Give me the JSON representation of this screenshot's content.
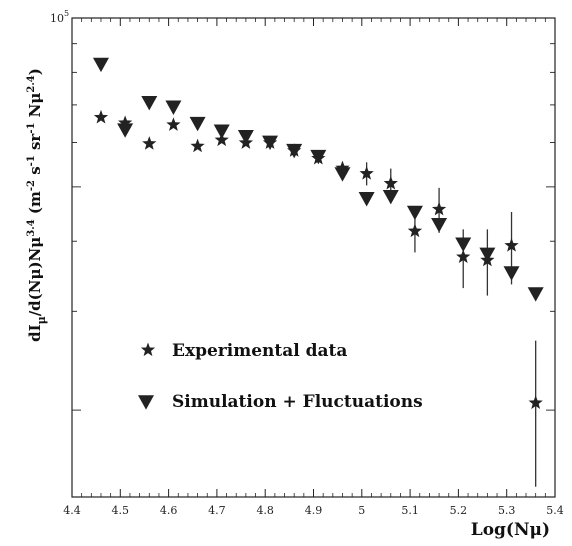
{
  "chart_data": {
    "type": "scatter",
    "xlabel": "Log(Nμ)",
    "ylabel": "dIμ/d(Nμ)Nμ^3.4 (m^-2 s^-1 sr^-1 Nμ^2.4)",
    "ylabel_parts": {
      "a": "dI",
      "a_sub": "μ",
      "b": "/d(Nμ)Nμ",
      "b_sup": "3.4",
      "c": " (m",
      "c_sup": "-2",
      "d": " s",
      "d_sup": "-1",
      "e": " sr",
      "e_sup": "-1",
      "f": " Nμ",
      "f_sup": "2.4",
      "g": ")"
    },
    "xlim": [
      4.4,
      5.4
    ],
    "x_ticks": [
      {
        "v": 4.4,
        "label": "4.4"
      },
      {
        "v": 4.5,
        "label": "4.5"
      },
      {
        "v": 4.6,
        "label": "4.6"
      },
      {
        "v": 4.7,
        "label": "4.7"
      },
      {
        "v": 4.8,
        "label": "4.8"
      },
      {
        "v": 4.9,
        "label": "4.9"
      },
      {
        "v": 5.0,
        "label": "5"
      },
      {
        "v": 5.1,
        "label": "5.1"
      },
      {
        "v": 5.2,
        "label": "5.2"
      },
      {
        "v": 5.3,
        "label": "5.3"
      },
      {
        "v": 5.4,
        "label": "5.4"
      }
    ],
    "y_scale": "log",
    "ylim": [
      14000,
      100000
    ],
    "y_top_label": {
      "base": "10",
      "exp": "5"
    },
    "y_minor_ticks": [
      20000,
      30000,
      40000,
      50000,
      60000,
      70000,
      80000,
      90000
    ],
    "grid": false,
    "legend_position": "lower-left",
    "series": [
      {
        "name": "Experimental data",
        "marker": "star",
        "points": [
          {
            "x": 4.46,
            "y": 66500,
            "err": 0
          },
          {
            "x": 4.51,
            "y": 65000,
            "err": 0
          },
          {
            "x": 4.56,
            "y": 59700,
            "err": 0
          },
          {
            "x": 4.61,
            "y": 64500,
            "err": 0
          },
          {
            "x": 4.66,
            "y": 59100,
            "err": 0
          },
          {
            "x": 4.71,
            "y": 60600,
            "err": 0
          },
          {
            "x": 4.76,
            "y": 59900,
            "err": 0
          },
          {
            "x": 4.81,
            "y": 59900,
            "err": 0
          },
          {
            "x": 4.86,
            "y": 58000,
            "err": 0
          },
          {
            "x": 4.91,
            "y": 56200,
            "err": 0
          },
          {
            "x": 4.96,
            "y": 54000,
            "err": 1200
          },
          {
            "x": 5.01,
            "y": 52800,
            "err": 2500
          },
          {
            "x": 5.06,
            "y": 50700,
            "err": 3200
          },
          {
            "x": 5.11,
            "y": 41700,
            "err": 3500
          },
          {
            "x": 5.16,
            "y": 45600,
            "err": 4200
          },
          {
            "x": 5.21,
            "y": 37500,
            "err": 4500
          },
          {
            "x": 5.26,
            "y": 37000,
            "err": 5000
          },
          {
            "x": 5.31,
            "y": 39300,
            "err": 5800
          },
          {
            "x": 5.36,
            "y": 20600,
            "err": 6000
          }
        ]
      },
      {
        "name": "Simulation + Fluctuations",
        "marker": "triangle-down",
        "points": [
          {
            "x": 4.46,
            "y": 82600
          },
          {
            "x": 4.51,
            "y": 63100
          },
          {
            "x": 4.56,
            "y": 70600
          },
          {
            "x": 4.61,
            "y": 69300
          },
          {
            "x": 4.66,
            "y": 64800
          },
          {
            "x": 4.71,
            "y": 62800
          },
          {
            "x": 4.76,
            "y": 61400
          },
          {
            "x": 4.81,
            "y": 60000
          },
          {
            "x": 4.86,
            "y": 58000
          },
          {
            "x": 4.91,
            "y": 56600
          },
          {
            "x": 4.96,
            "y": 52700
          },
          {
            "x": 5.01,
            "y": 47600
          },
          {
            "x": 5.06,
            "y": 48000
          },
          {
            "x": 5.11,
            "y": 45000
          },
          {
            "x": 5.16,
            "y": 42800
          },
          {
            "x": 5.21,
            "y": 39500
          },
          {
            "x": 5.26,
            "y": 37900
          },
          {
            "x": 5.31,
            "y": 35100
          },
          {
            "x": 5.36,
            "y": 32200
          }
        ]
      }
    ]
  }
}
